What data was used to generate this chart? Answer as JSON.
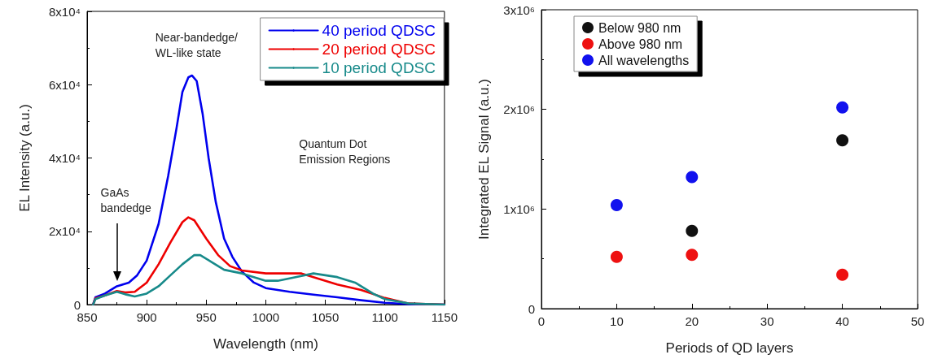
{
  "chart_data": [
    {
      "type": "line",
      "xlabel": "Wavelength (nm)",
      "ylabel": "EL Intensity (a.u.)",
      "xlim": [
        850,
        1150
      ],
      "xticks": [
        850,
        900,
        950,
        1000,
        1050,
        1100,
        1150
      ],
      "ylim": [
        0,
        80000
      ],
      "yticks": [
        0,
        {
          "value": 20000,
          "label": "2x10⁴"
        },
        {
          "value": 40000,
          "label": "4x10⁴"
        },
        {
          "value": 60000,
          "label": "6x10⁴"
        },
        {
          "value": 80000,
          "label": "8x10⁴"
        }
      ],
      "grid": false,
      "legend": "top right",
      "marker": "none",
      "line_style": "solid",
      "series": [
        {
          "name": "40 period QDSC",
          "color": "#0000ee",
          "x": [
            855,
            857,
            865,
            875,
            885,
            892,
            900,
            910,
            918,
            925,
            930,
            935,
            938,
            942,
            947,
            952,
            958,
            965,
            972,
            980,
            990,
            1000,
            1020,
            1040,
            1060,
            1080,
            1100,
            1120,
            1150
          ],
          "values": [
            0,
            2000,
            3000,
            5000,
            6000,
            8000,
            12000,
            22000,
            35000,
            48000,
            58000,
            62000,
            62500,
            61000,
            52000,
            40000,
            28000,
            18000,
            13000,
            9000,
            6000,
            4500,
            3500,
            2700,
            2000,
            1200,
            500,
            100,
            0
          ]
        },
        {
          "name": "20 period QDSC",
          "color": "#ee0000",
          "x": [
            855,
            857,
            865,
            875,
            882,
            890,
            900,
            910,
            920,
            930,
            935,
            940,
            950,
            960,
            970,
            980,
            1000,
            1020,
            1030,
            1040,
            1060,
            1080,
            1100,
            1120,
            1150
          ],
          "values": [
            0,
            1700,
            2500,
            3700,
            3300,
            3500,
            6000,
            11000,
            17000,
            22500,
            23800,
            23000,
            18000,
            13500,
            10500,
            9300,
            8500,
            8500,
            8500,
            7500,
            5500,
            4000,
            1800,
            300,
            0
          ]
        },
        {
          "name": "10 period QDSC",
          "color": "#178a8a",
          "x": [
            855,
            857,
            865,
            875,
            882,
            890,
            900,
            910,
            920,
            930,
            940,
            945,
            955,
            965,
            980,
            1000,
            1010,
            1025,
            1040,
            1060,
            1075,
            1090,
            1100,
            1120,
            1150
          ],
          "values": [
            0,
            1500,
            2500,
            3500,
            2800,
            2200,
            3000,
            5000,
            8000,
            11000,
            13500,
            13500,
            11500,
            9500,
            8500,
            6500,
            6500,
            7500,
            8500,
            7500,
            6000,
            3000,
            1500,
            300,
            0
          ]
        }
      ],
      "annotations": [
        {
          "text": "GaAs\nbandedge",
          "x": 875,
          "y": 5000
        },
        {
          "text": "Near-bandedge/\nWL-like state",
          "x": 938,
          "y": 62500
        },
        "Quantum Dot\nEmission Regions"
      ]
    },
    {
      "type": "scatter",
      "xlabel": "Periods of QD layers",
      "ylabel": "Integrated EL Signal (a.u.)",
      "xlim": [
        0,
        50
      ],
      "xticks": [
        0,
        10,
        20,
        30,
        40,
        50
      ],
      "ylim": [
        0,
        3000000
      ],
      "yticks": [
        0,
        {
          "value": 1000000,
          "label": "1x10⁶"
        },
        {
          "value": 2000000,
          "label": "2x10⁶"
        },
        {
          "value": 3000000,
          "label": "3x10⁶"
        }
      ],
      "grid": false,
      "legend": "top left",
      "marker": "circle",
      "series": [
        {
          "name": "Below 980 nm",
          "color": "#111111",
          "x": [
            20,
            40
          ],
          "values": [
            780000,
            1690000
          ]
        },
        {
          "name": "Above 980 nm",
          "color": "#ee1111",
          "x": [
            10,
            20,
            40
          ],
          "values": [
            520000,
            540000,
            340000
          ]
        },
        {
          "name": "All wavelengths",
          "color": "#1111ee",
          "x": [
            10,
            20,
            40
          ],
          "values": [
            1040000,
            1320000,
            2020000
          ]
        }
      ]
    }
  ]
}
